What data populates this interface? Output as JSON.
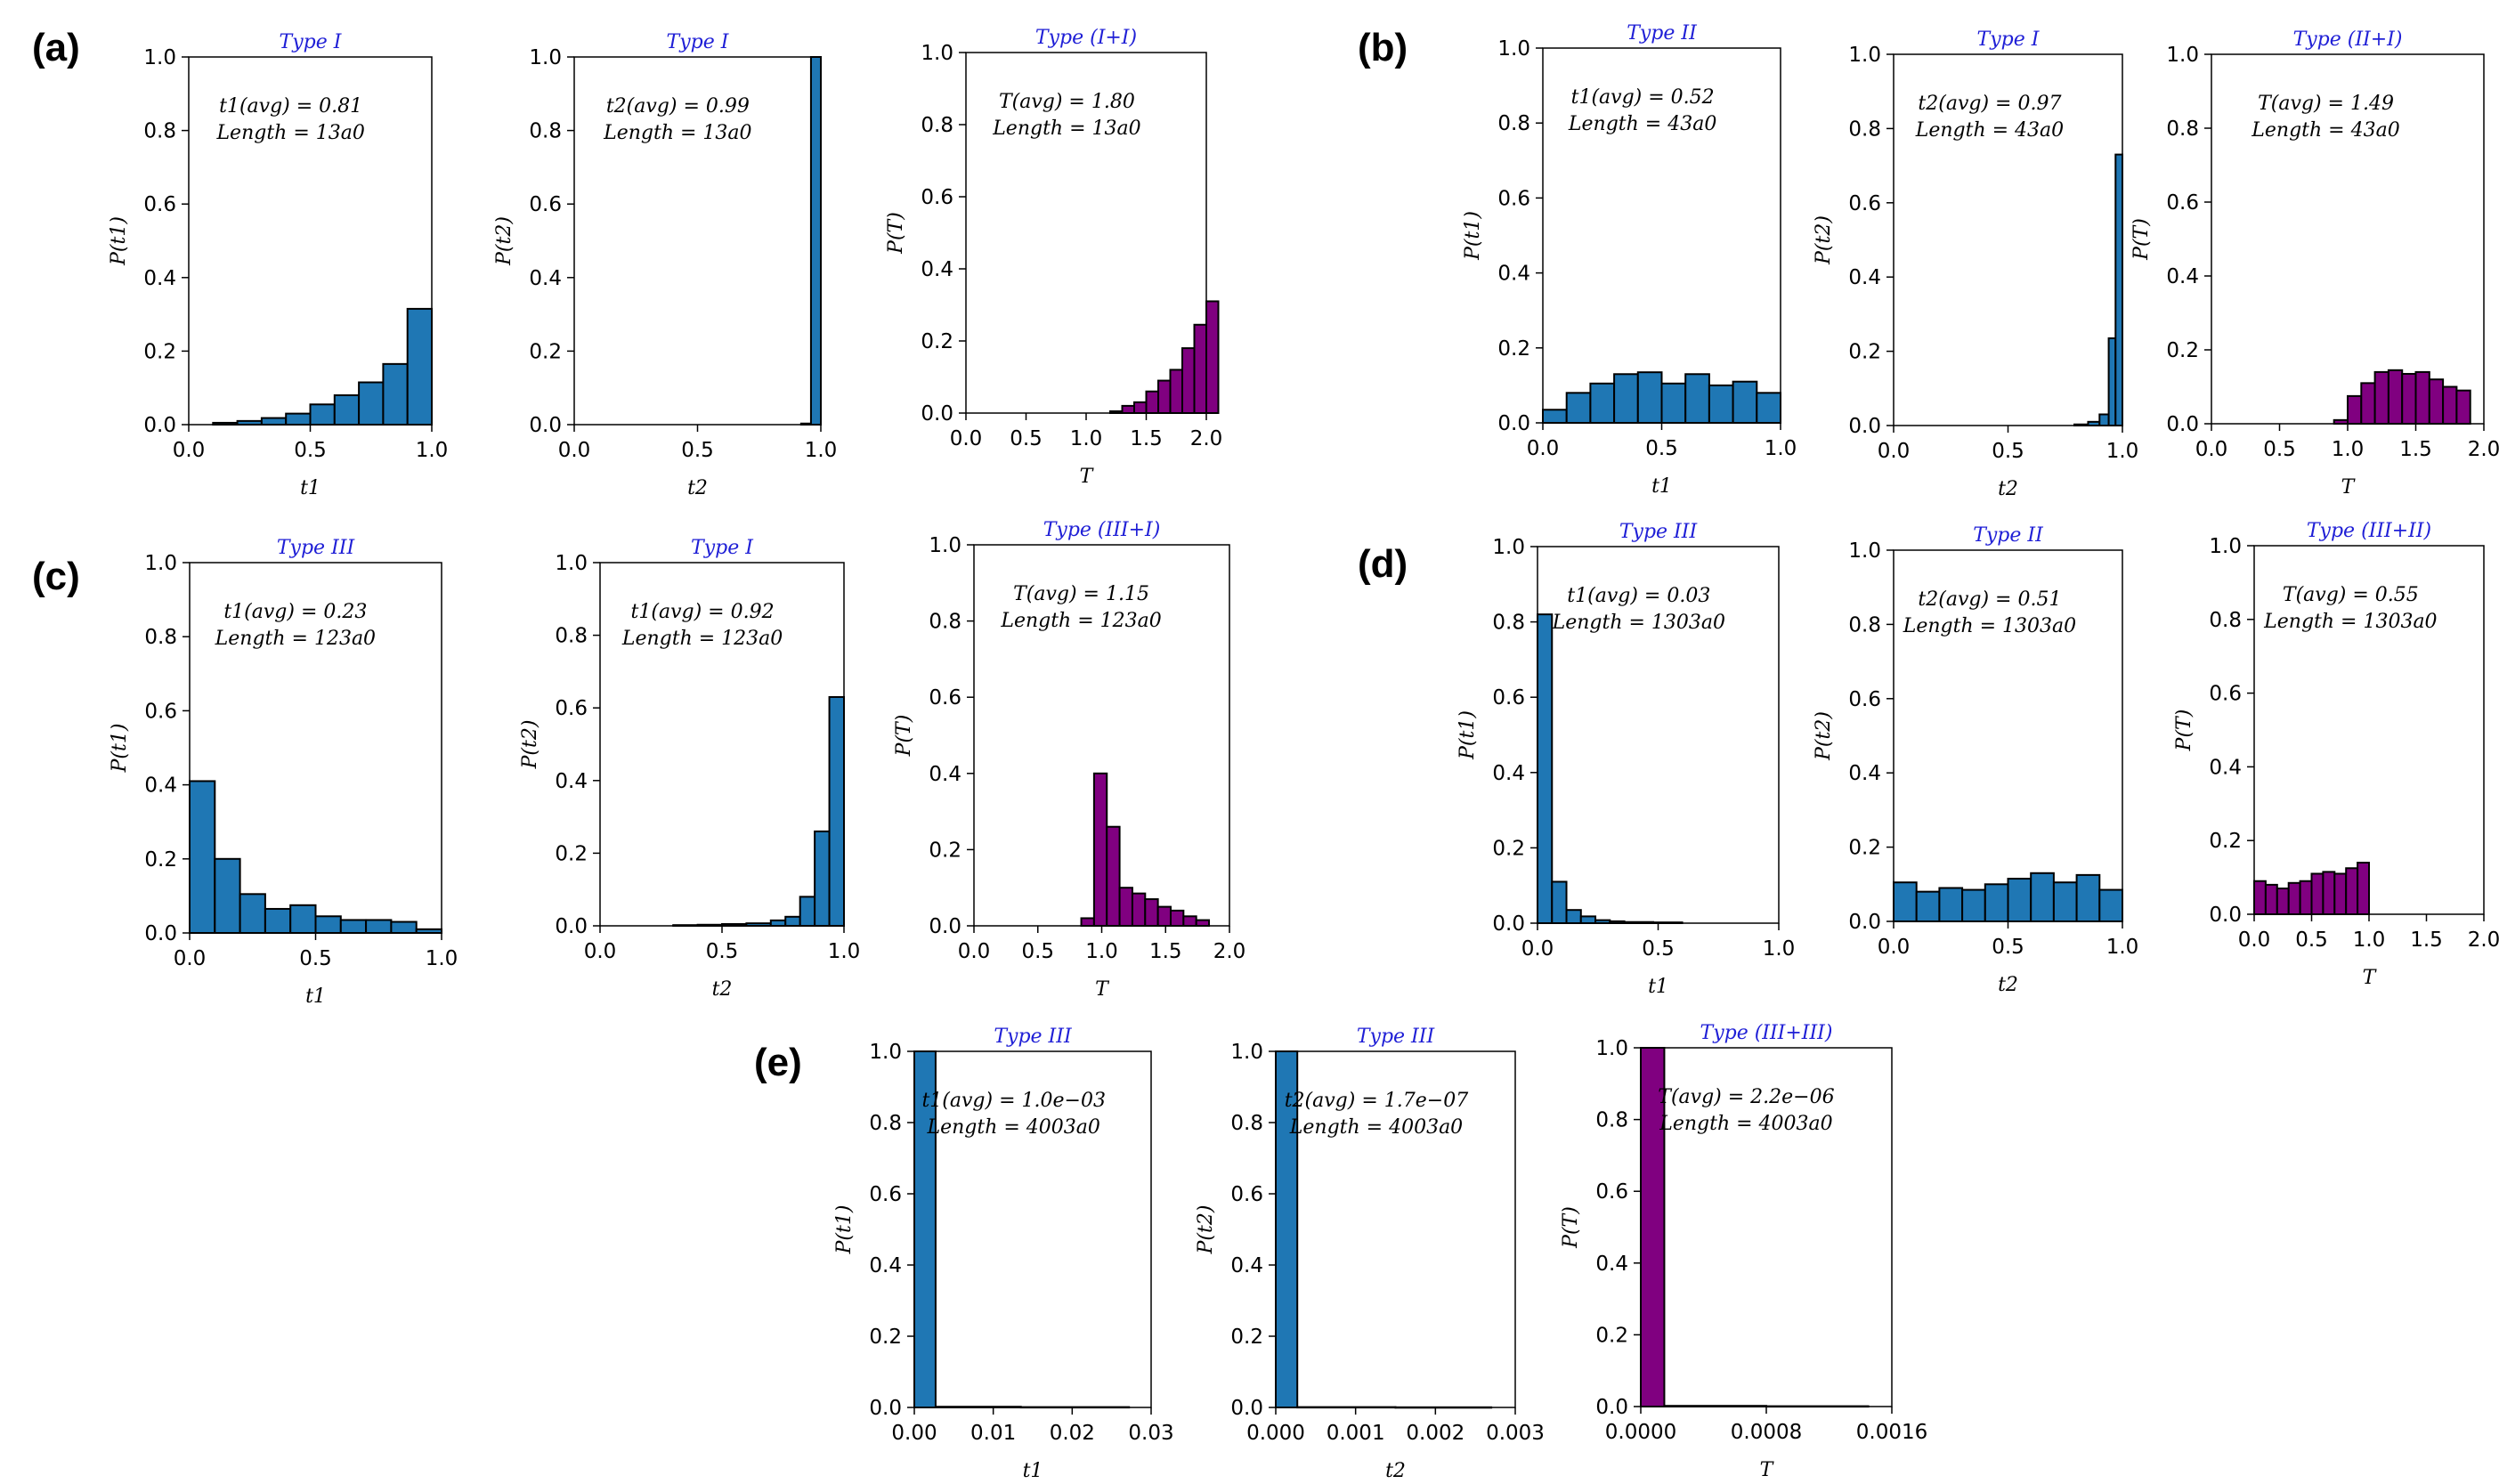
{
  "panel_labels": [
    "(a)",
    "(b)",
    "(c)",
    "(d)",
    "(e)"
  ],
  "colors": {
    "blue": "#1f77b4",
    "purple": "#800080",
    "title": "#1f1fd6"
  },
  "chart_data": [
    {
      "id": "a1",
      "panel": "(a)",
      "type": "bar",
      "title": "Type I",
      "xlabel": "t1",
      "ylabel": "P(t1)",
      "annotation": [
        "t1(avg) = 0.81",
        "Length = 13a0"
      ],
      "color": "blue",
      "xlim": [
        0,
        1
      ],
      "ylim": [
        0,
        1
      ],
      "xticks": [
        "0.0",
        "0.5",
        "1.0"
      ],
      "yticks": [
        "0.0",
        "0.2",
        "0.4",
        "0.6",
        "0.8",
        "1.0"
      ],
      "bins": [
        [
          0.1,
          0.2,
          0.005
        ],
        [
          0.2,
          0.3,
          0.01
        ],
        [
          0.3,
          0.4,
          0.018
        ],
        [
          0.4,
          0.5,
          0.03
        ],
        [
          0.5,
          0.6,
          0.055
        ],
        [
          0.6,
          0.7,
          0.08
        ],
        [
          0.7,
          0.8,
          0.115
        ],
        [
          0.8,
          0.9,
          0.165
        ],
        [
          0.9,
          1.0,
          0.315
        ]
      ]
    },
    {
      "id": "a2",
      "panel": "(a)",
      "type": "bar",
      "title": "Type I",
      "xlabel": "t2",
      "ylabel": "P(t2)",
      "annotation": [
        "t2(avg) = 0.99",
        "Length = 13a0"
      ],
      "color": "blue",
      "xlim": [
        0,
        1
      ],
      "ylim": [
        0,
        1
      ],
      "xticks": [
        "0.0",
        "0.5",
        "1.0"
      ],
      "yticks": [
        "0.0",
        "0.2",
        "0.4",
        "0.6",
        "0.8",
        "1.0"
      ],
      "bins": [
        [
          0.92,
          0.96,
          0.003
        ],
        [
          0.96,
          1.0,
          1.0
        ]
      ]
    },
    {
      "id": "a3",
      "panel": "(a)",
      "type": "bar",
      "title": "Type (I+I)",
      "xlabel": "T",
      "ylabel": "P(T)",
      "annotation": [
        "T(avg) = 1.80",
        "Length = 13a0"
      ],
      "color": "purple",
      "xlim": [
        0,
        2
      ],
      "ylim": [
        0,
        1
      ],
      "xticks": [
        "0.0",
        "0.5",
        "1.0",
        "1.5",
        "2.0"
      ],
      "yticks": [
        "0.0",
        "0.2",
        "0.4",
        "0.6",
        "0.8",
        "1.0"
      ],
      "bins": [
        [
          1.2,
          1.3,
          0.005
        ],
        [
          1.3,
          1.4,
          0.02
        ],
        [
          1.4,
          1.5,
          0.03
        ],
        [
          1.5,
          1.6,
          0.06
        ],
        [
          1.6,
          1.7,
          0.09
        ],
        [
          1.7,
          1.8,
          0.12
        ],
        [
          1.8,
          1.9,
          0.18
        ],
        [
          1.9,
          2.0,
          0.245
        ],
        [
          2.0,
          2.1,
          0.31
        ]
      ]
    },
    {
      "id": "b1",
      "panel": "(b)",
      "type": "bar",
      "title": "Type II",
      "xlabel": "t1",
      "ylabel": "P(t1)",
      "annotation": [
        "t1(avg) = 0.52",
        "Length = 43a0"
      ],
      "color": "blue",
      "xlim": [
        0,
        1
      ],
      "ylim": [
        0,
        1
      ],
      "xticks": [
        "0.0",
        "0.5",
        "1.0"
      ],
      "yticks": [
        "0.0",
        "0.2",
        "0.4",
        "0.6",
        "0.8",
        "1.0"
      ],
      "bins": [
        [
          0.0,
          0.1,
          0.035
        ],
        [
          0.1,
          0.2,
          0.08
        ],
        [
          0.2,
          0.3,
          0.105
        ],
        [
          0.3,
          0.4,
          0.13
        ],
        [
          0.4,
          0.5,
          0.135
        ],
        [
          0.5,
          0.6,
          0.105
        ],
        [
          0.6,
          0.7,
          0.13
        ],
        [
          0.7,
          0.8,
          0.1
        ],
        [
          0.8,
          0.9,
          0.11
        ],
        [
          0.9,
          1.0,
          0.08
        ]
      ]
    },
    {
      "id": "b2",
      "panel": "(b)",
      "type": "bar",
      "title": "Type I",
      "xlabel": "t2",
      "ylabel": "P(t2)",
      "annotation": [
        "t2(avg) = 0.97",
        "Length = 43a0"
      ],
      "color": "blue",
      "xlim": [
        0,
        1
      ],
      "ylim": [
        0,
        1
      ],
      "xticks": [
        "0.0",
        "0.5",
        "1.0"
      ],
      "yticks": [
        "0.0",
        "0.2",
        "0.4",
        "0.6",
        "0.8",
        "1.0"
      ],
      "bins": [
        [
          0.79,
          0.85,
          0.003
        ],
        [
          0.85,
          0.9,
          0.01
        ],
        [
          0.9,
          0.94,
          0.03
        ],
        [
          0.94,
          0.97,
          0.235
        ],
        [
          0.97,
          1.0,
          0.73
        ]
      ]
    },
    {
      "id": "b3",
      "panel": "(b)",
      "type": "bar",
      "title": "Type (II+I)",
      "xlabel": "T",
      "ylabel": "P(T)",
      "annotation": [
        "T(avg) = 1.49",
        "Length = 43a0"
      ],
      "color": "purple",
      "xlim": [
        0,
        2
      ],
      "ylim": [
        0,
        1
      ],
      "xticks": [
        "0.0",
        "0.5",
        "1.0",
        "1.5",
        "2.0"
      ],
      "yticks": [
        "0.0",
        "0.2",
        "0.4",
        "0.6",
        "0.8",
        "1.0"
      ],
      "bins": [
        [
          0.9,
          1.0,
          0.01
        ],
        [
          1.0,
          1.1,
          0.075
        ],
        [
          1.1,
          1.2,
          0.11
        ],
        [
          1.2,
          1.3,
          0.14
        ],
        [
          1.3,
          1.4,
          0.145
        ],
        [
          1.4,
          1.5,
          0.135
        ],
        [
          1.5,
          1.6,
          0.14
        ],
        [
          1.6,
          1.7,
          0.12
        ],
        [
          1.7,
          1.8,
          0.1
        ],
        [
          1.8,
          1.9,
          0.09
        ]
      ]
    },
    {
      "id": "c1",
      "panel": "(c)",
      "type": "bar",
      "title": "Type III",
      "xlabel": "t1",
      "ylabel": "P(t1)",
      "annotation": [
        "t1(avg) = 0.23",
        "Length = 123a0"
      ],
      "color": "blue",
      "xlim": [
        0,
        1
      ],
      "ylim": [
        0,
        1
      ],
      "xticks": [
        "0.0",
        "0.5",
        "1.0"
      ],
      "yticks": [
        "0.0",
        "0.2",
        "0.4",
        "0.6",
        "0.8",
        "1.0"
      ],
      "bins": [
        [
          0.0,
          0.1,
          0.41
        ],
        [
          0.1,
          0.2,
          0.2
        ],
        [
          0.2,
          0.3,
          0.105
        ],
        [
          0.3,
          0.4,
          0.065
        ],
        [
          0.4,
          0.5,
          0.075
        ],
        [
          0.5,
          0.6,
          0.045
        ],
        [
          0.6,
          0.7,
          0.035
        ],
        [
          0.7,
          0.8,
          0.035
        ],
        [
          0.8,
          0.9,
          0.03
        ],
        [
          0.9,
          1.0,
          0.01
        ]
      ]
    },
    {
      "id": "c2",
      "panel": "(c)",
      "type": "bar",
      "title": "Type I",
      "xlabel": "t2",
      "ylabel": "P(t2)",
      "annotation": [
        "t1(avg) = 0.92",
        "Length = 123a0"
      ],
      "color": "blue",
      "xlim": [
        0,
        1
      ],
      "ylim": [
        0,
        1
      ],
      "xticks": [
        "0.0",
        "0.5",
        "1.0"
      ],
      "yticks": [
        "0.0",
        "0.2",
        "0.4",
        "0.6",
        "0.8",
        "1.0"
      ],
      "bins": [
        [
          0.3,
          0.4,
          0.002
        ],
        [
          0.4,
          0.5,
          0.003
        ],
        [
          0.5,
          0.6,
          0.005
        ],
        [
          0.6,
          0.7,
          0.007
        ],
        [
          0.7,
          0.76,
          0.015
        ],
        [
          0.76,
          0.82,
          0.025
        ],
        [
          0.82,
          0.88,
          0.08
        ],
        [
          0.88,
          0.94,
          0.26
        ],
        [
          0.94,
          1.0,
          0.63
        ]
      ]
    },
    {
      "id": "c3",
      "panel": "(c)",
      "type": "bar",
      "title": "Type (III+I)",
      "xlabel": "T",
      "ylabel": "P(T)",
      "annotation": [
        "T(avg) = 1.15",
        "Length = 123a0"
      ],
      "color": "purple",
      "xlim": [
        0,
        2
      ],
      "ylim": [
        0,
        1
      ],
      "xticks": [
        "0.0",
        "0.5",
        "1.0",
        "1.5",
        "2.0"
      ],
      "yticks": [
        "0.0",
        "0.2",
        "0.4",
        "0.6",
        "0.8",
        "1.0"
      ],
      "bins": [
        [
          0.84,
          0.94,
          0.02
        ],
        [
          0.94,
          1.04,
          0.4
        ],
        [
          1.04,
          1.14,
          0.26
        ],
        [
          1.14,
          1.24,
          0.1
        ],
        [
          1.24,
          1.34,
          0.085
        ],
        [
          1.34,
          1.44,
          0.07
        ],
        [
          1.44,
          1.54,
          0.05
        ],
        [
          1.54,
          1.64,
          0.04
        ],
        [
          1.64,
          1.74,
          0.025
        ],
        [
          1.74,
          1.84,
          0.015
        ]
      ]
    },
    {
      "id": "d1",
      "panel": "(d)",
      "type": "bar",
      "title": "Type III",
      "xlabel": "t1",
      "ylabel": "P(t1)",
      "annotation": [
        "t1(avg) = 0.03",
        "Length = 1303a0"
      ],
      "color": "blue",
      "xlim": [
        0,
        1
      ],
      "ylim": [
        0,
        1
      ],
      "xticks": [
        "0.0",
        "0.5",
        "1.0"
      ],
      "yticks": [
        "0.0",
        "0.2",
        "0.4",
        "0.6",
        "0.8",
        "1.0"
      ],
      "bins": [
        [
          0.0,
          0.06,
          0.82
        ],
        [
          0.06,
          0.12,
          0.11
        ],
        [
          0.12,
          0.18,
          0.035
        ],
        [
          0.18,
          0.24,
          0.018
        ],
        [
          0.24,
          0.3,
          0.008
        ],
        [
          0.3,
          0.36,
          0.005
        ],
        [
          0.36,
          0.48,
          0.003
        ],
        [
          0.48,
          0.6,
          0.002
        ]
      ]
    },
    {
      "id": "d2",
      "panel": "(d)",
      "type": "bar",
      "title": "Type II",
      "xlabel": "t2",
      "ylabel": "P(t2)",
      "annotation": [
        "t2(avg) = 0.51",
        "Length = 1303a0"
      ],
      "color": "blue",
      "xlim": [
        0,
        1
      ],
      "ylim": [
        0,
        1
      ],
      "xticks": [
        "0.0",
        "0.5",
        "1.0"
      ],
      "yticks": [
        "0.0",
        "0.2",
        "0.4",
        "0.6",
        "0.8",
        "1.0"
      ],
      "bins": [
        [
          0.0,
          0.1,
          0.105
        ],
        [
          0.1,
          0.2,
          0.08
        ],
        [
          0.2,
          0.3,
          0.09
        ],
        [
          0.3,
          0.4,
          0.085
        ],
        [
          0.4,
          0.5,
          0.1
        ],
        [
          0.5,
          0.6,
          0.115
        ],
        [
          0.6,
          0.7,
          0.13
        ],
        [
          0.7,
          0.8,
          0.105
        ],
        [
          0.8,
          0.9,
          0.125
        ],
        [
          0.9,
          1.0,
          0.085
        ]
      ]
    },
    {
      "id": "d3",
      "panel": "(d)",
      "type": "bar",
      "title": "Type (III+II)",
      "xlabel": "T",
      "ylabel": "P(T)",
      "annotation": [
        "T(avg) = 0.55",
        "Length = 1303a0"
      ],
      "color": "purple",
      "xlim": [
        0,
        2
      ],
      "ylim": [
        0,
        1
      ],
      "xticks": [
        "0.0",
        "0.5",
        "1.0",
        "1.5",
        "2.0"
      ],
      "yticks": [
        "0.0",
        "0.2",
        "0.4",
        "0.6",
        "0.8",
        "1.0"
      ],
      "bins": [
        [
          0.0,
          0.1,
          0.09
        ],
        [
          0.1,
          0.2,
          0.08
        ],
        [
          0.2,
          0.3,
          0.07
        ],
        [
          0.3,
          0.4,
          0.085
        ],
        [
          0.4,
          0.5,
          0.09
        ],
        [
          0.5,
          0.6,
          0.11
        ],
        [
          0.6,
          0.7,
          0.115
        ],
        [
          0.7,
          0.8,
          0.11
        ],
        [
          0.8,
          0.9,
          0.125
        ],
        [
          0.9,
          1.0,
          0.14
        ]
      ]
    },
    {
      "id": "e1",
      "panel": "(e)",
      "type": "bar",
      "title": "Type III",
      "xlabel": "t1",
      "ylabel": "P(t1)",
      "annotation": [
        "t1(avg) = 1.0e−03",
        "Length = 4003a0"
      ],
      "color": "blue",
      "xlim": [
        0,
        0.03
      ],
      "ylim": [
        0,
        1
      ],
      "xticks": [
        "0.00",
        "0.01",
        "0.02",
        "0.03"
      ],
      "yticks": [
        "0.0",
        "0.2",
        "0.4",
        "0.6",
        "0.8",
        "1.0"
      ],
      "bins": [
        [
          0.0,
          0.0027,
          1.0
        ],
        [
          0.0027,
          0.0135,
          0.002
        ],
        [
          0.0135,
          0.0272,
          0.001
        ]
      ]
    },
    {
      "id": "e2",
      "panel": "(e)",
      "type": "bar",
      "title": "Type III",
      "xlabel": "t2",
      "ylabel": "P(t2)",
      "annotation": [
        "t2(avg) = 1.7e−07",
        "Length = 4003a0"
      ],
      "color": "blue",
      "xlim": [
        0,
        0.003
      ],
      "ylim": [
        0,
        1
      ],
      "xticks": [
        "0.000",
        "0.001",
        "0.002",
        "0.003"
      ],
      "yticks": [
        "0.0",
        "0.2",
        "0.4",
        "0.6",
        "0.8",
        "1.0"
      ],
      "bins": [
        [
          0.0,
          0.00027,
          1.0
        ],
        [
          0.00027,
          0.0015,
          0.001
        ],
        [
          0.0015,
          0.0027,
          0.0005
        ]
      ]
    },
    {
      "id": "e3",
      "panel": "(e)",
      "type": "bar",
      "title": "Type (III+III)",
      "xlabel": "T",
      "ylabel": "P(T)",
      "annotation": [
        "T(avg) = 2.2e−06",
        "Length = 4003a0"
      ],
      "color": "purple",
      "xlim": [
        0,
        0.0016
      ],
      "ylim": [
        0,
        1
      ],
      "xticks": [
        "0.0000",
        "0.0008",
        "0.0016"
      ],
      "yticks": [
        "0.0",
        "0.2",
        "0.4",
        "0.6",
        "0.8",
        "1.0"
      ],
      "bins": [
        [
          0.0,
          0.00015,
          1.0
        ],
        [
          0.00015,
          0.0008,
          0.002
        ],
        [
          0.0008,
          0.00145,
          0.001
        ]
      ]
    }
  ]
}
